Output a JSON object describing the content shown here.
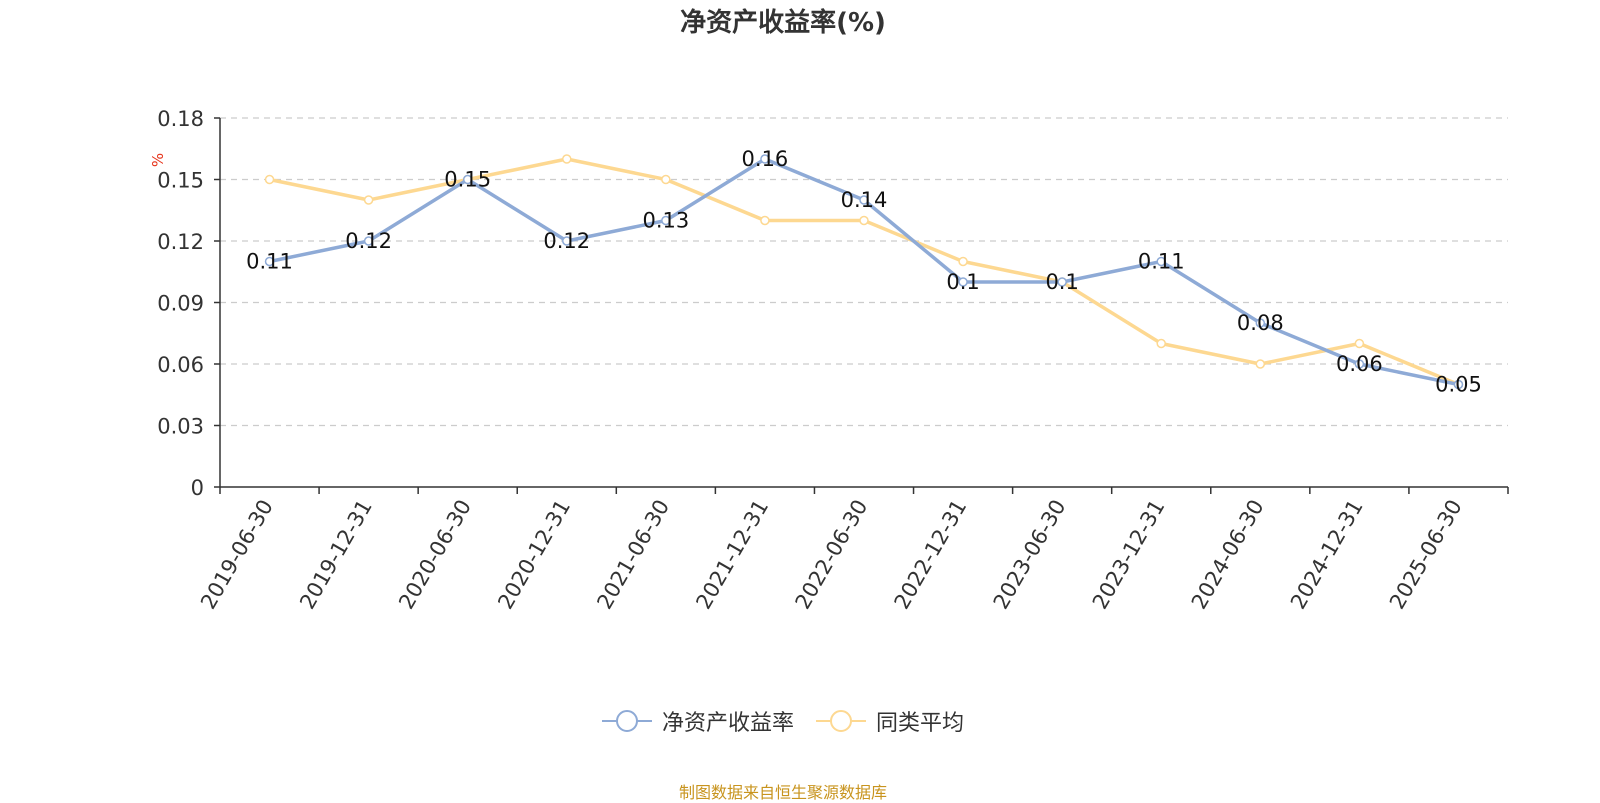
{
  "chart_data": {
    "type": "line",
    "title": "净资产收益率(%)",
    "ylabel": "%",
    "categories": [
      "2019-06-30",
      "2019-12-31",
      "2020-06-30",
      "2020-12-31",
      "2021-06-30",
      "2021-12-31",
      "2022-06-30",
      "2022-12-31",
      "2023-06-30",
      "2023-12-31",
      "2024-06-30",
      "2024-12-31",
      "2025-06-30"
    ],
    "series": [
      {
        "name": "净资产收益率",
        "color": "#8eaad6",
        "values": [
          0.11,
          0.12,
          0.15,
          0.12,
          0.13,
          0.16,
          0.14,
          0.1,
          0.1,
          0.11,
          0.08,
          0.06,
          0.05
        ],
        "labels": [
          "0.11",
          "0.12",
          "0.15",
          "0.12",
          "0.13",
          "0.16",
          "0.14",
          "0.1",
          "0.1",
          "0.11",
          "0.08",
          "0.06",
          "0.05"
        ]
      },
      {
        "name": "同类平均",
        "color": "#fdd891",
        "values": [
          0.15,
          0.14,
          0.15,
          0.16,
          0.15,
          0.13,
          0.13,
          0.11,
          0.1,
          0.07,
          0.06,
          0.07,
          0.05
        ]
      }
    ],
    "ylim": [
      0,
      0.18
    ],
    "yticks": [
      "0",
      "0.03",
      "0.06",
      "0.09",
      "0.12",
      "0.15",
      "0.18"
    ],
    "grid": true,
    "legend_position": "bottom"
  },
  "source_note": "制图数据来自恒生聚源数据库"
}
